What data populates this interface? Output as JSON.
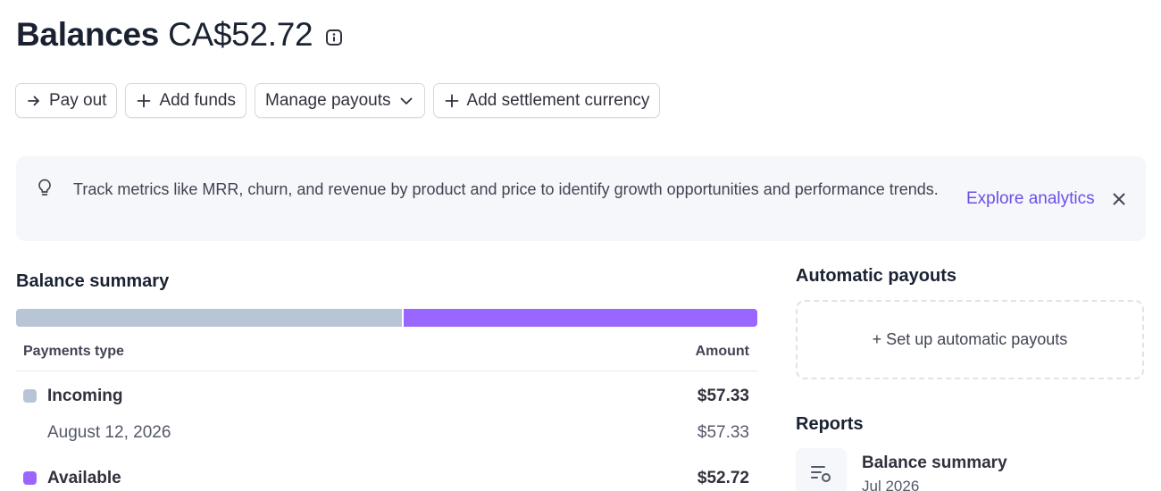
{
  "header": {
    "title": "Balances",
    "amount": "CA$52.72"
  },
  "actions": {
    "pay_out": "Pay out",
    "add_funds": "Add funds",
    "manage_payouts": "Manage payouts",
    "add_settlement_currency": "Add settlement currency"
  },
  "banner": {
    "text": "Track metrics like MRR, churn, and revenue by product and price to identify growth opportunities and performance trends.",
    "link": "Explore analytics"
  },
  "balance_summary": {
    "title": "Balance summary",
    "bar": {
      "incoming_fraction": 0.521,
      "available_fraction": 0.479
    },
    "columns": {
      "type": "Payments type",
      "amount": "Amount"
    },
    "rows": {
      "incoming": {
        "label": "Incoming",
        "amount": "$57.33",
        "color": "#b8c5d6"
      },
      "incoming_date": {
        "label": "August 12, 2026",
        "amount": "$57.33"
      },
      "available": {
        "label": "Available",
        "amount": "$52.72",
        "color": "#9966ff"
      }
    }
  },
  "automatic_payouts": {
    "title": "Automatic payouts",
    "setup": "+ Set up automatic payouts"
  },
  "reports": {
    "title": "Reports",
    "items": [
      {
        "title": "Balance summary",
        "subtitle": "Jul 2026",
        "icon": "report-list-icon"
      }
    ]
  }
}
